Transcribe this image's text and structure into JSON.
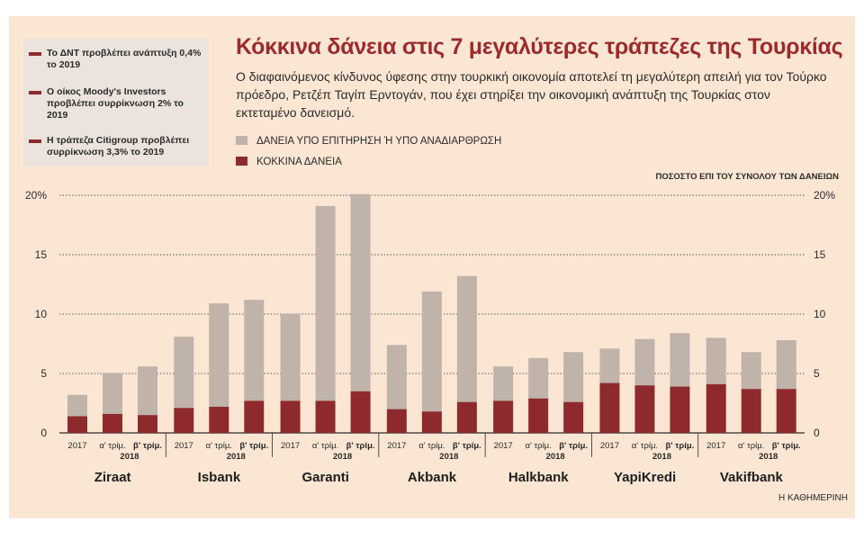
{
  "notes": [
    "Το ΔΝΤ προβλέπει ανάπτυξη 0,4% το 2019",
    "Ο οίκος Moody's Investors προβλέπει συρρίκνωση 2% το 2019",
    "Η τράπεζα Citigroup  προβλέπει συρρίκνωση 3,3% το 2019"
  ],
  "title": "Κόκκινα δάνεια στις 7 μεγαλύτερες τράπεζες της Τουρκίας",
  "subtitle": "Ο διαφαινόμενος κίνδυνος ύφεσης στην τουρκική οικονομία αποτελεί τη μεγαλύτερη απειλή για τον Τούρκο πρόεδρο, Ρετζέπ Ταγίπ Ερντογάν, που έχει στηρίξει την οικονομική ανάπτυξη της Τουρκίας στον εκτεταμένο δανεισμό.",
  "source": "Η ΚΑΘΗΜΕΡΙΝΗ",
  "colors": {
    "accent": "#9b2a2e",
    "red_loans": "#8e2a2e",
    "watch_loans": "#bfb3aa"
  },
  "chart_data": {
    "type": "bar",
    "stacked": true,
    "ylabel": "ΠΟΣΟΣΤΟ ΕΠΙ ΤΟΥ ΣΥΝΟΛΟΥ ΤΩΝ ΔΑΝΕΙΩΝ",
    "ylim": [
      0,
      20
    ],
    "yticks": [
      "0",
      "5",
      "10",
      "15",
      "20%"
    ],
    "grid": true,
    "legend": "top-left",
    "periods": [
      "2017",
      "α' τρίμ.",
      "β' τρίμ."
    ],
    "year_label": "2018",
    "banks": [
      "Ziraat",
      "Isbank",
      "Garanti",
      "Akbank",
      "Halkbank",
      "YapiKredi",
      "Vakifbank"
    ],
    "series": [
      {
        "name": "ΚΟΚΚΙΝΑ ΔΑΝΕΙΑ",
        "color": "#8e2a2e",
        "values": [
          [
            1.4,
            1.6,
            1.5
          ],
          [
            2.1,
            2.2,
            2.7
          ],
          [
            2.7,
            2.7,
            3.5
          ],
          [
            2.0,
            1.8,
            2.6
          ],
          [
            2.7,
            2.9,
            2.6
          ],
          [
            4.2,
            4.0,
            3.9
          ],
          [
            4.1,
            3.7,
            3.7
          ]
        ]
      },
      {
        "name": "ΔΑΝΕΙΑ ΥΠΟ ΕΠΙΤΗΡΗΣΗ Ή ΥΠΟ ΑΝΑΔΙΑΡΘΡΩΣΗ",
        "color": "#bfb3aa",
        "values": [
          [
            1.8,
            3.4,
            4.1
          ],
          [
            6.0,
            8.7,
            8.5
          ],
          [
            7.3,
            16.4,
            16.6
          ],
          [
            5.4,
            10.1,
            10.6
          ],
          [
            2.9,
            3.4,
            4.2
          ],
          [
            2.9,
            3.9,
            4.5
          ],
          [
            3.9,
            3.1,
            4.1
          ]
        ]
      }
    ]
  }
}
